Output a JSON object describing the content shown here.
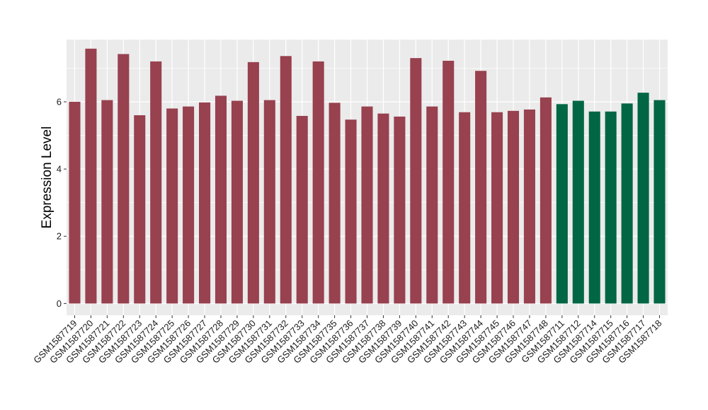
{
  "chart_data": {
    "type": "bar",
    "title": "",
    "xlabel": "",
    "ylabel": "Expression Level",
    "ylim": [
      -0.35,
      7.85
    ],
    "yticks": [
      0,
      2,
      4,
      6
    ],
    "grid": true,
    "legend": "none",
    "categories": [
      "GSM1587719",
      "GSM1587720",
      "GSM1587721",
      "GSM1587722",
      "GSM1587723",
      "GSM1587724",
      "GSM1587725",
      "GSM1587726",
      "GSM1587727",
      "GSM1587728",
      "GSM1587729",
      "GSM1587730",
      "GSM1587731",
      "GSM1587732",
      "GSM1587733",
      "GSM1587734",
      "GSM1587735",
      "GSM1587736",
      "GSM1587737",
      "GSM1587738",
      "GSM1587739",
      "GSM1587740",
      "GSM1587741",
      "GSM1587742",
      "GSM1587743",
      "GSM1587744",
      "GSM1587745",
      "GSM1587746",
      "GSM1587747",
      "GSM1587748",
      "GSM1587711",
      "GSM1587712",
      "GSM1587714",
      "GSM1587715",
      "GSM1587716",
      "GSM1587717",
      "GSM1587718"
    ],
    "values": [
      6.0,
      7.58,
      6.05,
      7.42,
      5.6,
      7.2,
      5.8,
      5.86,
      5.98,
      6.18,
      6.03,
      7.18,
      6.05,
      7.36,
      5.58,
      7.2,
      5.97,
      5.47,
      5.86,
      5.65,
      5.56,
      7.3,
      5.86,
      7.22,
      5.69,
      6.92,
      5.69,
      5.73,
      5.77,
      6.13,
      5.93,
      6.03,
      5.71,
      5.71,
      5.95,
      6.27,
      6.05
    ],
    "groups": [
      "a",
      "a",
      "a",
      "a",
      "a",
      "a",
      "a",
      "a",
      "a",
      "a",
      "a",
      "a",
      "a",
      "a",
      "a",
      "a",
      "a",
      "a",
      "a",
      "a",
      "a",
      "a",
      "a",
      "a",
      "a",
      "a",
      "a",
      "a",
      "a",
      "a",
      "b",
      "b",
      "b",
      "b",
      "b",
      "b",
      "b"
    ],
    "group_colors": {
      "a": "#98414f",
      "b": "#006644"
    },
    "panel_background": "#ebebeb",
    "grid_color": "#ffffff"
  }
}
